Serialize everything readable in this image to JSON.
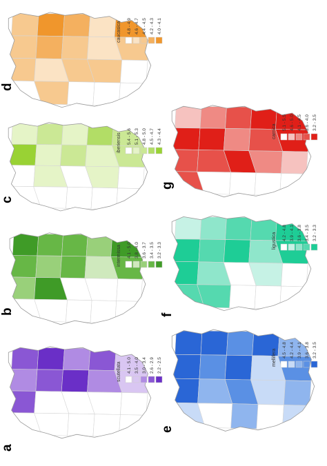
{
  "colors": {
    "outline": "#d6d6d6",
    "border": "#999999"
  },
  "panels": [
    {
      "letter": "a",
      "legend": {
        "title": "scutellata",
        "items": [
          {
            "label": "4.1 - 5.0",
            "color": "#ffffff"
          },
          {
            "label": "3.5 - 4.0",
            "color": "#d9c6f2"
          },
          {
            "label": "3.0 - 3.4",
            "color": "#b08be3"
          },
          {
            "label": "2.6 - 2.9",
            "color": "#8a57d4"
          },
          {
            "label": "2.2 - 2.5",
            "color": "#6a2fc7"
          }
        ]
      }
    },
    {
      "letter": "b",
      "legend": {
        "title": "intermissa",
        "items": [
          {
            "label": "4.1 - 5.0",
            "color": "#ffffff"
          },
          {
            "label": "3.8 - 4.0",
            "color": "#cfe9bd"
          },
          {
            "label": "3.6 - 3.7",
            "color": "#99d07a"
          },
          {
            "label": "3.4 - 3.5",
            "color": "#67b746"
          },
          {
            "label": "3.2 - 3.3",
            "color": "#3f9b27"
          }
        ]
      }
    },
    {
      "letter": "c",
      "legend": {
        "title": "iberiensis",
        "items": [
          {
            "label": "5.4 - 5.6",
            "color": "#ffffff"
          },
          {
            "label": "5.1 - 5.3",
            "color": "#e5f4c7"
          },
          {
            "label": "4.8 - 5.0",
            "color": "#cbe895"
          },
          {
            "label": "4.5 - 4.7",
            "color": "#b2dd66"
          },
          {
            "label": "4.3 - 4.4",
            "color": "#99d234"
          }
        ]
      }
    },
    {
      "letter": "d",
      "legend": {
        "title": "caucasica",
        "items": [
          {
            "label": "4.8 - 4.9",
            "color": "#ffffff"
          },
          {
            "label": "4.6 - 4.7",
            "color": "#fbe3c4"
          },
          {
            "label": "4.4 - 4.5",
            "color": "#f7c98f"
          },
          {
            "label": "4.2 - 4.3",
            "color": "#f4b05f"
          },
          {
            "label": "4.0 - 4.1",
            "color": "#f0962c"
          }
        ]
      }
    },
    {
      "letter": "e",
      "legend": {
        "title": "mellifera",
        "items": [
          {
            "label": "4.5 - 4.8",
            "color": "#ffffff"
          },
          {
            "label": "4.2 - 4.4",
            "color": "#c8dbf7"
          },
          {
            "label": "3.9 - 4.1",
            "color": "#8fb5ee"
          },
          {
            "label": "3.6 - 3.8",
            "color": "#5a90e4"
          },
          {
            "label": "3.2 - 3.5",
            "color": "#2a66d6"
          }
        ]
      }
    },
    {
      "letter": "f",
      "legend": {
        "title": "ligustica",
        "items": [
          {
            "label": "4.2 - 4.8",
            "color": "#ffffff"
          },
          {
            "label": "3.9 - 4.1",
            "color": "#c6f2e5"
          },
          {
            "label": "3.6 - 3.8",
            "color": "#8fe6cb"
          },
          {
            "label": "3.4 - 3.5",
            "color": "#55d9af"
          },
          {
            "label": "3.2 - 3.3",
            "color": "#1ecd96"
          }
        ]
      }
    },
    {
      "letter": "g",
      "legend": {
        "title": "carnica",
        "items": [
          {
            "label": "5.1 - 5.5",
            "color": "#ffffff"
          },
          {
            "label": "4.6 - 5.0",
            "color": "#f6c2bf"
          },
          {
            "label": "4.1 - 4.5",
            "color": "#ef8a84"
          },
          {
            "label": "3.6 - 4.0",
            "color": "#e7514a"
          },
          {
            "label": "3.2 - 3.5",
            "color": "#e01f18"
          }
        ]
      }
    }
  ]
}
